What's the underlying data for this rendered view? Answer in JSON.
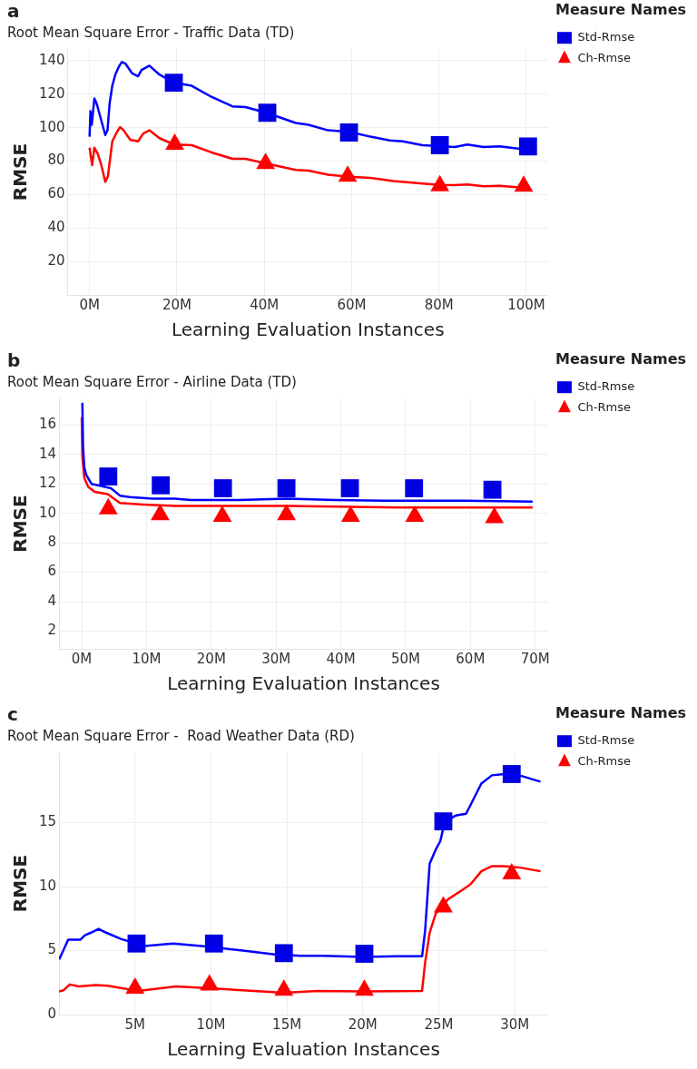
{
  "chart_data": [
    {
      "type": "line",
      "title": "a",
      "subtitle": "Root Mean Square Error - Traffic Data (TD)",
      "xlabel": "Learning Evaluation Instances",
      "ylabel": "RMSE",
      "legend_title": "Measure Names",
      "legend": "right",
      "grid": true,
      "xlim": [
        -5,
        105
      ],
      "xticks": [
        {
          "value": 0,
          "label": "0M"
        },
        {
          "value": 20,
          "label": "20M"
        },
        {
          "value": 40,
          "label": "40M"
        },
        {
          "value": 60,
          "label": "60M"
        },
        {
          "value": 80,
          "label": "80M"
        },
        {
          "value": 100,
          "label": "100M"
        }
      ],
      "ylim": [
        0,
        147
      ],
      "yticks": [
        20,
        40,
        60,
        80,
        100,
        120,
        140
      ],
      "series": [
        {
          "type": "line",
          "marker": "none",
          "color": "#0000ff",
          "x": [
            0,
            0.2,
            0.5,
            1.1,
            1.6,
            2.2,
            3,
            3.6,
            4.1,
            4.6,
            5.2,
            5.9,
            6.7,
            7.4,
            8.2,
            9.7,
            11.1,
            11.9,
            13.7,
            16,
            19.3,
            23.4,
            27.9,
            32.7,
            35.7,
            40.5,
            47.2,
            50.1,
            54.6,
            59.4,
            64.3,
            68.7,
            71.7,
            76.2,
            80.2,
            83.6,
            86.5,
            90.2,
            93.9,
            97.7,
            100.3
          ],
          "values": [
            94.6,
            109.8,
            101.7,
            117.4,
            114.6,
            108.9,
            101.3,
            95.6,
            98.4,
            114.6,
            125,
            131.7,
            136.4,
            139.2,
            138.3,
            132.6,
            130.7,
            134.5,
            137,
            131.7,
            126.9,
            125,
            118.4,
            112.7,
            112.3,
            108.9,
            102.8,
            101.7,
            98.4,
            97.5,
            94.6,
            92.4,
            91.8,
            89.5,
            89,
            88.4,
            89.9,
            88.4,
            88.8,
            87.6,
            87.1
          ]
        },
        {
          "type": "line",
          "marker": "none",
          "color": "#ff0000",
          "x": [
            0,
            0.2,
            0.6,
            1.1,
            1.9,
            2.6,
            3.6,
            4.2,
            5.2,
            6.3,
            7,
            7.8,
            9.3,
            11.1,
            12.3,
            13.7,
            16,
            19.3,
            23.4,
            27.9,
            32.7,
            35.7,
            40.5,
            47.2,
            50.1,
            54.6,
            59.4,
            64.3,
            69.5,
            76.2,
            80.2,
            83.6,
            86.5,
            90.2,
            93.9,
            100.3
          ],
          "values": [
            88,
            84.2,
            77.6,
            88,
            84.2,
            78.5,
            67.5,
            70.9,
            91.8,
            97.5,
            100.3,
            98.4,
            92.8,
            91.8,
            96.5,
            98.4,
            93.7,
            89.9,
            89.5,
            85.2,
            81.4,
            81.4,
            78.5,
            74.7,
            74.3,
            71.9,
            70.6,
            70,
            68.1,
            66.6,
            65.8,
            65.6,
            66,
            64.9,
            65.2,
            63.9
          ]
        },
        {
          "type": "scatter",
          "name": "Std-Rmse",
          "marker": "square",
          "color": "#0000e0",
          "x": [
            19.3,
            40.7,
            59.4,
            80.2,
            100.4
          ],
          "values": [
            126.9,
            108.9,
            97.1,
            89.5,
            88.8
          ]
        },
        {
          "type": "scatter",
          "name": "Ch-Rmse",
          "marker": "triangle",
          "color": "#ff0000",
          "x": [
            19.5,
            40.3,
            59.1,
            80.2,
            99.4
          ],
          "values": [
            90,
            78.5,
            70.9,
            65.2,
            64.9
          ]
        }
      ]
    },
    {
      "type": "line",
      "title": "b",
      "subtitle": "Root Mean Square Error - Airline Data (TD)",
      "xlabel": "Learning Evaluation Instances",
      "ylabel": "RMSE",
      "legend_title": "Measure Names",
      "legend": "right",
      "grid": true,
      "xlim": [
        -3.5,
        72
      ],
      "xticks": [
        {
          "value": 0,
          "label": "0M"
        },
        {
          "value": 10,
          "label": "10M"
        },
        {
          "value": 20,
          "label": "20M"
        },
        {
          "value": 30,
          "label": "30M"
        },
        {
          "value": 40,
          "label": "40M"
        },
        {
          "value": 50,
          "label": "50M"
        },
        {
          "value": 60,
          "label": "60M"
        },
        {
          "value": 70,
          "label": "70M"
        }
      ],
      "ylim": [
        0.8,
        17.8
      ],
      "yticks": [
        2,
        4,
        6,
        8,
        10,
        12,
        14,
        16
      ],
      "series": [
        {
          "type": "line",
          "marker": "none",
          "color": "#0000ff",
          "x": [
            0.1,
            0.2,
            0.4,
            0.7,
            1.5,
            2.5,
            4.5,
            5.9,
            7.4,
            10.9,
            14.4,
            16.8,
            24.3,
            31.7,
            39.1,
            46.5,
            58.9,
            69.6
          ],
          "values": [
            17.5,
            14.5,
            13.1,
            12.6,
            12,
            11.9,
            11.7,
            11.2,
            11.1,
            11,
            11,
            10.9,
            10.9,
            11,
            10.9,
            10.85,
            10.85,
            10.8
          ]
        },
        {
          "type": "line",
          "marker": "none",
          "color": "#ff0000",
          "x": [
            0,
            0.1,
            0.4,
            1,
            2,
            4,
            5.9,
            9.4,
            14.4,
            24.3,
            31.7,
            39.1,
            49,
            58.9,
            69.6
          ],
          "values": [
            16.5,
            13.8,
            12.4,
            11.8,
            11.45,
            11.3,
            10.7,
            10.6,
            10.5,
            10.5,
            10.5,
            10.45,
            10.4,
            10.4,
            10.4
          ]
        },
        {
          "type": "scatter",
          "name": "Std-Rmse",
          "marker": "square",
          "color": "#0000e0",
          "x": [
            4.1,
            12.2,
            21.8,
            31.6,
            41.4,
            51.3,
            63.4
          ],
          "values": [
            12.5,
            11.9,
            11.7,
            11.7,
            11.7,
            11.7,
            11.6
          ]
        },
        {
          "type": "scatter",
          "name": "Ch-Rmse",
          "marker": "triangle",
          "color": "#ff0000",
          "x": [
            4.1,
            12.1,
            21.7,
            31.6,
            41.5,
            51.4,
            63.7
          ],
          "values": [
            10.3,
            9.9,
            9.8,
            9.9,
            9.8,
            9.8,
            9.7
          ]
        }
      ]
    },
    {
      "type": "line",
      "title": "c",
      "subtitle": "Root Mean Square Error -  Road Weather Data (RD)",
      "xlabel": "Learning Evaluation Instances",
      "ylabel": "RMSE",
      "legend_title": "Measure Names",
      "legend": "right",
      "grid": true,
      "xlim": [
        0,
        32.2
      ],
      "xticks": [
        {
          "value": 5,
          "label": "5M"
        },
        {
          "value": 10,
          "label": "10M"
        },
        {
          "value": 15,
          "label": "15M"
        },
        {
          "value": 20,
          "label": "20M"
        },
        {
          "value": 25,
          "label": "25M"
        },
        {
          "value": 30,
          "label": "30M"
        }
      ],
      "ylim": [
        0,
        20.5
      ],
      "yticks": [
        0,
        5,
        10,
        15
      ],
      "series": [
        {
          "type": "line",
          "marker": "none",
          "color": "#0000ff",
          "x": [
            0,
            0.2,
            0.6,
            0.9,
            1.4,
            1.7,
            2.1,
            2.6,
            3.1,
            4.1,
            5.1,
            5.6,
            7.5,
            9.9,
            12.1,
            14.2,
            15.9,
            17.4,
            20,
            22.2,
            23.9,
            24.1,
            24.4,
            24.8,
            25.1,
            25.4,
            26.1,
            26.8,
            27.1,
            27.8,
            28.5,
            29.3,
            30.3,
            31.7
          ],
          "values": [
            4.3,
            4.8,
            5.85,
            5.85,
            5.85,
            6.2,
            6.4,
            6.7,
            6.4,
            5.9,
            5.55,
            5.35,
            5.55,
            5.3,
            5,
            4.7,
            4.6,
            4.6,
            4.5,
            4.55,
            4.55,
            6.55,
            11.8,
            12.9,
            13.55,
            15.1,
            15.55,
            15.7,
            16.4,
            18.05,
            18.7,
            18.8,
            18.7,
            18.2
          ]
        },
        {
          "type": "line",
          "marker": "none",
          "color": "#ff0000",
          "x": [
            0,
            0.3,
            0.7,
            1.3,
            2.4,
            3.2,
            5.2,
            7.7,
            9.9,
            12.1,
            14.8,
            17,
            20,
            23.9,
            24.1,
            24.4,
            24.8,
            25.6,
            26.5,
            27.1,
            27.8,
            28.5,
            29.3,
            30.3,
            31.7
          ],
          "values": [
            1.8,
            1.9,
            2.35,
            2.2,
            2.3,
            2.25,
            1.85,
            2.2,
            2.05,
            1.9,
            1.7,
            1.85,
            1.8,
            1.85,
            4.05,
            6.4,
            7.9,
            9,
            9.7,
            10.2,
            11.2,
            11.6,
            11.6,
            11.5,
            11.2
          ]
        },
        {
          "type": "scatter",
          "name": "Std-Rmse",
          "marker": "square",
          "color": "#0000e0",
          "x": [
            5.1,
            10.2,
            14.8,
            20.1,
            25.3,
            29.8
          ],
          "values": [
            5.55,
            5.55,
            4.8,
            4.75,
            15.1,
            18.8
          ]
        },
        {
          "type": "scatter",
          "name": "Ch-Rmse",
          "marker": "triangle",
          "color": "#ff0000",
          "x": [
            5,
            9.9,
            14.8,
            20.1,
            25.3,
            29.8
          ],
          "values": [
            2.05,
            2.3,
            1.9,
            1.9,
            8.4,
            11
          ]
        }
      ]
    }
  ]
}
